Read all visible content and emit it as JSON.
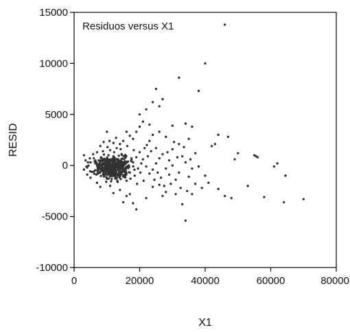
{
  "chart_data": {
    "type": "scatter",
    "title": "",
    "annotation": "Residuos versus X1",
    "xlabel": "X1",
    "ylabel": "RESID",
    "xlim": [
      0,
      80000
    ],
    "ylim": [
      -10000,
      15000
    ],
    "x_ticks": [
      0,
      20000,
      40000,
      60000,
      80000
    ],
    "x_tick_labels": [
      "0",
      "20000",
      "40000",
      "60000",
      "80000"
    ],
    "y_ticks": [
      15000,
      10000,
      5000,
      0,
      -5000,
      -10000
    ],
    "y_tick_labels": [
      "15000",
      "10000",
      "5000",
      "0",
      "-5000",
      "-10000"
    ],
    "grid": false,
    "marker_color": "#333333",
    "points": [
      [
        46000,
        13800
      ],
      [
        40000,
        10000
      ],
      [
        32000,
        8600
      ],
      [
        38000,
        7300
      ],
      [
        25000,
        7500
      ],
      [
        27000,
        6500
      ],
      [
        24000,
        6200
      ],
      [
        26000,
        5800
      ],
      [
        22000,
        5500
      ],
      [
        20000,
        5000
      ],
      [
        34000,
        4100
      ],
      [
        36000,
        3800
      ],
      [
        30000,
        3900
      ],
      [
        23000,
        4000
      ],
      [
        21000,
        4300
      ],
      [
        44000,
        3000
      ],
      [
        47000,
        2800
      ],
      [
        43000,
        2100
      ],
      [
        42000,
        1900
      ],
      [
        50000,
        1200
      ],
      [
        49000,
        600
      ],
      [
        55000,
        1000
      ],
      [
        55500,
        900
      ],
      [
        56000,
        800
      ],
      [
        61000,
        -100
      ],
      [
        62000,
        200
      ],
      [
        64500,
        -1000
      ],
      [
        70000,
        -3300
      ],
      [
        64000,
        -3600
      ],
      [
        58000,
        -3100
      ],
      [
        53000,
        -2000
      ],
      [
        48000,
        -3200
      ],
      [
        46000,
        -3000
      ],
      [
        44000,
        -2300
      ],
      [
        41000,
        -1700
      ],
      [
        39000,
        -2200
      ],
      [
        36000,
        -2800
      ],
      [
        34000,
        -5400
      ],
      [
        33000,
        -3800
      ],
      [
        31000,
        -2800
      ],
      [
        38000,
        -100
      ],
      [
        37000,
        1200
      ],
      [
        35000,
        2600
      ],
      [
        32000,
        2100
      ],
      [
        30000,
        1600
      ],
      [
        29000,
        -900
      ],
      [
        28000,
        -2600
      ],
      [
        26000,
        -1900
      ],
      [
        27000,
        -3000
      ],
      [
        24000,
        -2100
      ],
      [
        22000,
        -3200
      ],
      [
        19000,
        -4300
      ],
      [
        18000,
        -3700
      ],
      [
        17000,
        -2800
      ],
      [
        15000,
        -3600
      ],
      [
        16000,
        -3000
      ],
      [
        14000,
        -2400
      ],
      [
        12000,
        -2700
      ],
      [
        11000,
        -2000
      ],
      [
        10000,
        -1300
      ],
      [
        28000,
        2800
      ],
      [
        26000,
        3300
      ],
      [
        24000,
        3000
      ],
      [
        23000,
        2400
      ],
      [
        25000,
        1700
      ],
      [
        20000,
        3800
      ],
      [
        19000,
        3300
      ],
      [
        18000,
        2600
      ],
      [
        17000,
        2900
      ],
      [
        16000,
        3300
      ],
      [
        15000,
        2400
      ],
      [
        14000,
        2100
      ],
      [
        13000,
        1700
      ],
      [
        12000,
        2200
      ],
      [
        11000,
        1500
      ],
      [
        10000,
        3300
      ],
      [
        9000,
        2300
      ],
      [
        8000,
        1900
      ],
      [
        7000,
        1300
      ],
      [
        6000,
        700
      ],
      [
        5000,
        300
      ],
      [
        4000,
        -200
      ],
      [
        3500,
        500
      ],
      [
        3000,
        1000
      ],
      [
        3000,
        -400
      ],
      [
        4000,
        -900
      ],
      [
        5000,
        -1200
      ],
      [
        6000,
        -600
      ],
      [
        7000,
        -1700
      ],
      [
        8000,
        -2100
      ],
      [
        9000,
        -800
      ],
      [
        10000,
        -200
      ],
      [
        11000,
        400
      ],
      [
        12000,
        900
      ],
      [
        13000,
        100
      ],
      [
        14000,
        -600
      ],
      [
        15000,
        -1100
      ],
      [
        16000,
        -1500
      ],
      [
        17000,
        -700
      ],
      [
        18000,
        300
      ],
      [
        19000,
        800
      ],
      [
        20000,
        1300
      ],
      [
        21000,
        600
      ],
      [
        22000,
        -100
      ],
      [
        23000,
        -800
      ],
      [
        24000,
        -400
      ],
      [
        25000,
        200
      ],
      [
        26000,
        700
      ],
      [
        27000,
        1100
      ],
      [
        28000,
        -300
      ],
      [
        29000,
        500
      ],
      [
        30000,
        0
      ],
      [
        31000,
        -1400
      ],
      [
        32000,
        -700
      ],
      [
        33000,
        900
      ],
      [
        34000,
        300
      ],
      [
        35000,
        -1100
      ],
      [
        36000,
        -300
      ],
      [
        37000,
        -1800
      ],
      [
        40000,
        -1000
      ],
      [
        6500,
        200
      ],
      [
        7500,
        500
      ],
      [
        8500,
        100
      ],
      [
        9500,
        600
      ],
      [
        10500,
        1000
      ],
      [
        11500,
        100
      ],
      [
        12500,
        -400
      ],
      [
        13500,
        600
      ],
      [
        14500,
        1100
      ],
      [
        15500,
        400
      ],
      [
        16500,
        -200
      ],
      [
        17500,
        700
      ],
      [
        18500,
        -1000
      ],
      [
        19500,
        -300
      ],
      [
        20500,
        200
      ],
      [
        21500,
        1700
      ],
      [
        22500,
        900
      ],
      [
        23500,
        1400
      ],
      [
        24500,
        -1400
      ],
      [
        25500,
        -700
      ],
      [
        7200,
        -300
      ],
      [
        8200,
        800
      ],
      [
        9200,
        -500
      ],
      [
        10200,
        1800
      ],
      [
        11200,
        -1000
      ],
      [
        12200,
        1300
      ],
      [
        13200,
        -1500
      ],
      [
        14200,
        1600
      ],
      [
        15200,
        -400
      ],
      [
        16200,
        1900
      ],
      [
        17200,
        -1300
      ],
      [
        18200,
        1500
      ],
      [
        19200,
        -1800
      ],
      [
        20200,
        -700
      ],
      [
        21200,
        -1500
      ],
      [
        22200,
        2000
      ],
      [
        8800,
        1400
      ],
      [
        9800,
        -1600
      ],
      [
        10800,
        2400
      ],
      [
        12800,
        2700
      ],
      [
        6800,
        -900
      ],
      [
        5800,
        1100
      ],
      [
        4800,
        700
      ],
      [
        4200,
        300
      ],
      [
        3800,
        -100
      ],
      [
        9400,
        300
      ],
      [
        10600,
        -600
      ],
      [
        11800,
        700
      ],
      [
        13800,
        -900
      ],
      [
        14800,
        300
      ],
      [
        26500,
        -1200
      ],
      [
        27500,
        -2000
      ],
      [
        28500,
        1300
      ],
      [
        29500,
        -1800
      ],
      [
        30500,
        2300
      ],
      [
        31500,
        800
      ],
      [
        32500,
        -2200
      ],
      [
        33500,
        1800
      ],
      [
        34500,
        -2500
      ],
      [
        35500,
        600
      ]
    ]
  }
}
